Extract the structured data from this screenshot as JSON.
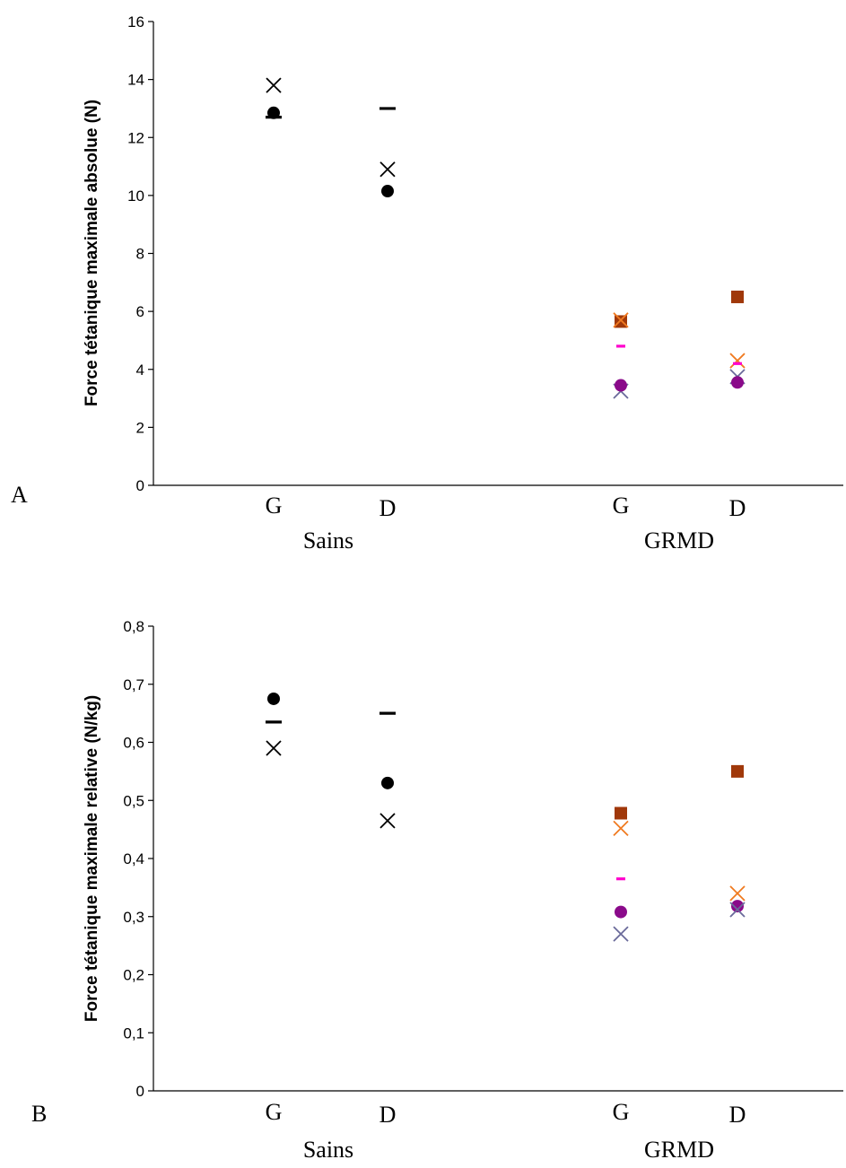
{
  "colors": {
    "black": "#000000",
    "orange": "#f07a20",
    "brown": "#a0380a",
    "magenta": "#ff00cc",
    "purple": "#8a0a8a",
    "slate": "#6a6a9a"
  },
  "chart_data": [
    {
      "type": "scatter",
      "panel_label": "A",
      "ylabel": "Force tétanique maximale absolue (N)",
      "ylim": [
        0,
        16
      ],
      "yticks": [
        0,
        2,
        4,
        6,
        8,
        10,
        12,
        14,
        16
      ],
      "ytick_labels": [
        "0",
        "2",
        "4",
        "6",
        "8",
        "10",
        "12",
        "14",
        "16"
      ],
      "categories": [
        "G",
        "D",
        "G",
        "D"
      ],
      "groups": [
        {
          "label": "Sains",
          "categories": [
            0,
            1
          ]
        },
        {
          "label": "GRMD",
          "categories": [
            2,
            3
          ]
        }
      ],
      "series": [
        {
          "marker": "circle",
          "color": "black",
          "points": [
            {
              "cat": 0,
              "y": 12.85
            },
            {
              "cat": 1,
              "y": 10.15
            }
          ]
        },
        {
          "marker": "x",
          "color": "black",
          "points": [
            {
              "cat": 0,
              "y": 13.8
            },
            {
              "cat": 1,
              "y": 10.9
            }
          ]
        },
        {
          "marker": "dash",
          "color": "black",
          "points": [
            {
              "cat": 0,
              "y": 12.7
            },
            {
              "cat": 1,
              "y": 13.0
            }
          ]
        },
        {
          "marker": "square",
          "color": "brown",
          "points": [
            {
              "cat": 2,
              "y": 5.65
            },
            {
              "cat": 3,
              "y": 6.5
            }
          ]
        },
        {
          "marker": "x",
          "color": "orange",
          "points": [
            {
              "cat": 2,
              "y": 5.7
            },
            {
              "cat": 3,
              "y": 4.3
            }
          ]
        },
        {
          "marker": "dash",
          "color": "magenta",
          "points": [
            {
              "cat": 2,
              "y": 4.8
            },
            {
              "cat": 3,
              "y": 4.2
            }
          ]
        },
        {
          "marker": "x",
          "color": "slate",
          "points": [
            {
              "cat": 2,
              "y": 3.25
            },
            {
              "cat": 3,
              "y": 3.75
            }
          ]
        },
        {
          "marker": "circle",
          "color": "purple",
          "points": [
            {
              "cat": 2,
              "y": 3.45
            },
            {
              "cat": 3,
              "y": 3.55
            }
          ]
        }
      ]
    },
    {
      "type": "scatter",
      "panel_label": "B",
      "ylabel": "Force tétanique maximale relative (N/kg)",
      "ylim": [
        0,
        0.8
      ],
      "yticks": [
        0,
        0.1,
        0.2,
        0.3,
        0.4,
        0.5,
        0.6,
        0.7,
        0.8
      ],
      "ytick_labels": [
        "0",
        "0,1",
        "0,2",
        "0,3",
        "0,4",
        "0,5",
        "0,6",
        "0,7",
        "0,8"
      ],
      "categories": [
        "G",
        "D",
        "G",
        "D"
      ],
      "groups": [
        {
          "label": "Sains",
          "categories": [
            0,
            1
          ]
        },
        {
          "label": "GRMD",
          "categories": [
            2,
            3
          ]
        }
      ],
      "series": [
        {
          "marker": "circle",
          "color": "black",
          "points": [
            {
              "cat": 0,
              "y": 0.675
            },
            {
              "cat": 1,
              "y": 0.53
            }
          ]
        },
        {
          "marker": "dash",
          "color": "black",
          "points": [
            {
              "cat": 0,
              "y": 0.635
            },
            {
              "cat": 1,
              "y": 0.65
            }
          ]
        },
        {
          "marker": "x",
          "color": "black",
          "points": [
            {
              "cat": 0,
              "y": 0.59
            },
            {
              "cat": 1,
              "y": 0.465
            }
          ]
        },
        {
          "marker": "square",
          "color": "brown",
          "points": [
            {
              "cat": 2,
              "y": 0.478
            },
            {
              "cat": 3,
              "y": 0.55
            }
          ]
        },
        {
          "marker": "x",
          "color": "orange",
          "points": [
            {
              "cat": 2,
              "y": 0.452
            },
            {
              "cat": 3,
              "y": 0.34
            }
          ]
        },
        {
          "marker": "dash",
          "color": "magenta",
          "points": [
            {
              "cat": 2,
              "y": 0.365
            },
            {
              "cat": 3,
              "y": 0.32
            }
          ]
        },
        {
          "marker": "circle",
          "color": "purple",
          "points": [
            {
              "cat": 2,
              "y": 0.308
            },
            {
              "cat": 3,
              "y": 0.318
            }
          ]
        },
        {
          "marker": "x",
          "color": "slate",
          "points": [
            {
              "cat": 2,
              "y": 0.27
            },
            {
              "cat": 3,
              "y": 0.312
            }
          ]
        }
      ]
    }
  ]
}
